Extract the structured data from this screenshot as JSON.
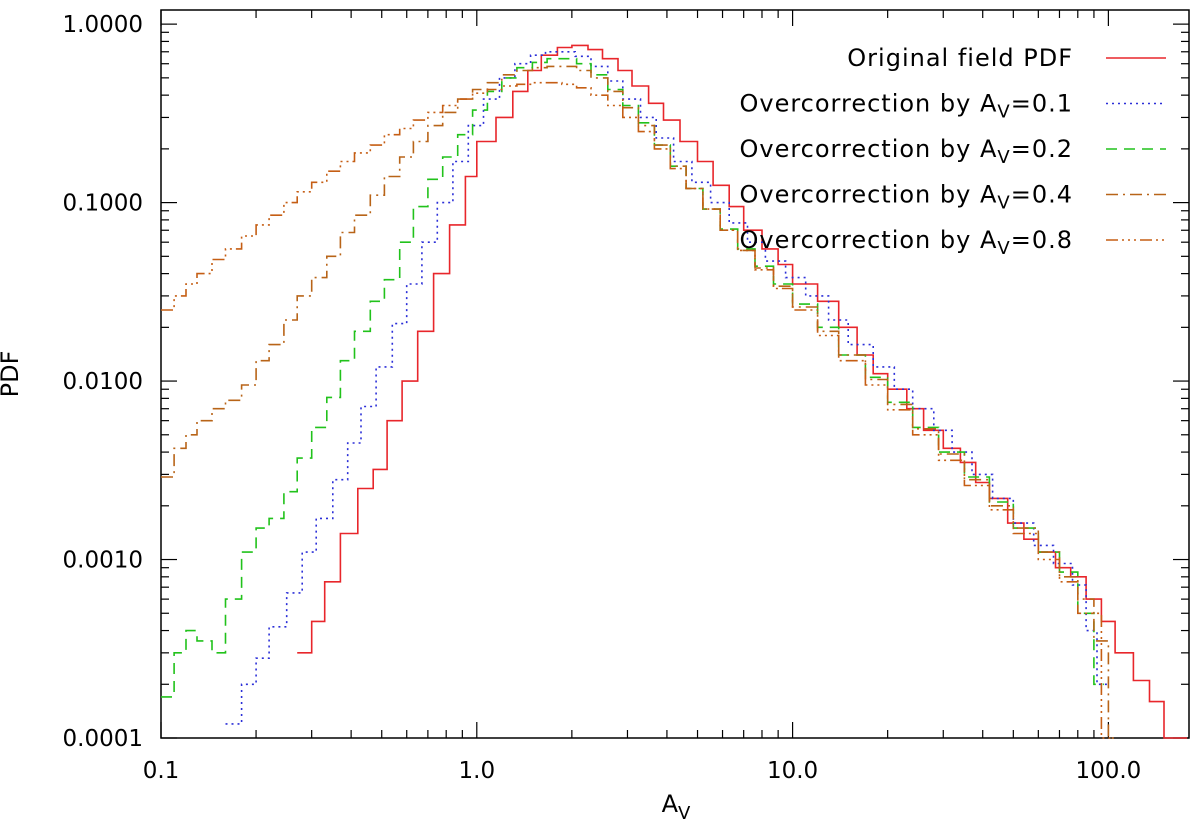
{
  "chart_data": {
    "type": "line",
    "title": "",
    "xlabel": "A",
    "xlabel_subscript": "V",
    "ylabel": "PDF",
    "xscale": "log",
    "yscale": "log",
    "xlim": [
      0.1,
      180
    ],
    "ylim": [
      0.0001,
      1.2
    ],
    "grid": false,
    "legend_position": "top-right",
    "x_tick_labels": [
      {
        "value": 0.1,
        "label": "0.1"
      },
      {
        "value": 1,
        "label": "1.0"
      },
      {
        "value": 10,
        "label": "10.0"
      },
      {
        "value": 100,
        "label": "100.0"
      }
    ],
    "y_tick_labels": [
      {
        "value": 0.0001,
        "label": "0.0001"
      },
      {
        "value": 0.001,
        "label": "0.0010"
      },
      {
        "value": 0.01,
        "label": "0.0100"
      },
      {
        "value": 0.1,
        "label": "0.1000"
      },
      {
        "value": 1,
        "label": "1.0000"
      }
    ],
    "series": [
      {
        "name": "Original field PDF",
        "legend_prefix": "Original field PDF",
        "legend_sub": "",
        "legend_suffix": "",
        "color": "#e8262b",
        "dash": "",
        "x": [
          0.27,
          0.3,
          0.33,
          0.37,
          0.42,
          0.47,
          0.52,
          0.58,
          0.65,
          0.73,
          0.82,
          0.92,
          1.0,
          1.15,
          1.3,
          1.45,
          1.6,
          1.8,
          2.0,
          2.25,
          2.5,
          2.8,
          3.1,
          3.5,
          3.9,
          4.4,
          5.0,
          5.6,
          6.3,
          7.0,
          8.0,
          9.0,
          10,
          12,
          14,
          16,
          18,
          20,
          23,
          26,
          30,
          34,
          38,
          42,
          48,
          54,
          60,
          68,
          76,
          85,
          95,
          105,
          120,
          135,
          150,
          165
        ],
        "values": [
          0.0003,
          0.00045,
          0.00075,
          0.0014,
          0.0025,
          0.0032,
          0.006,
          0.01,
          0.019,
          0.04,
          0.075,
          0.14,
          0.22,
          0.3,
          0.42,
          0.55,
          0.67,
          0.74,
          0.76,
          0.72,
          0.64,
          0.55,
          0.45,
          0.36,
          0.29,
          0.22,
          0.17,
          0.125,
          0.095,
          0.07,
          0.055,
          0.045,
          0.035,
          0.028,
          0.02,
          0.014,
          0.011,
          0.009,
          0.007,
          0.0053,
          0.0042,
          0.0035,
          0.0027,
          0.0022,
          0.0016,
          0.0013,
          0.0011,
          0.0009,
          0.0008,
          0.0006,
          0.00045,
          0.0003,
          0.00021,
          0.00016,
          0.0001,
          0.0001
        ]
      },
      {
        "name": "Overcorrection by Av=0.1",
        "legend_prefix": "Overcorrection by A",
        "legend_sub": "V",
        "legend_suffix": "=0.1",
        "color": "#2b2fd8",
        "dash": "2,4",
        "x": [
          0.16,
          0.18,
          0.2,
          0.22,
          0.25,
          0.28,
          0.31,
          0.35,
          0.39,
          0.43,
          0.48,
          0.54,
          0.6,
          0.67,
          0.75,
          0.84,
          0.94,
          1.05,
          1.18,
          1.32,
          1.48,
          1.65,
          1.85,
          2.05,
          2.3,
          2.6,
          2.9,
          3.3,
          3.7,
          4.2,
          4.8,
          5.5,
          6.3,
          7.2,
          8.2,
          9.5,
          11,
          13,
          15,
          18,
          21,
          24,
          28,
          32,
          37,
          43,
          50,
          58,
          67,
          77,
          85,
          92
        ],
        "values": [
          0.00012,
          0.0002,
          0.00028,
          0.00042,
          0.00065,
          0.0011,
          0.0017,
          0.0028,
          0.0045,
          0.0072,
          0.012,
          0.021,
          0.035,
          0.06,
          0.1,
          0.17,
          0.27,
          0.38,
          0.5,
          0.6,
          0.67,
          0.7,
          0.7,
          0.66,
          0.58,
          0.48,
          0.38,
          0.3,
          0.23,
          0.17,
          0.13,
          0.1,
          0.077,
          0.06,
          0.047,
          0.038,
          0.03,
          0.022,
          0.016,
          0.012,
          0.009,
          0.007,
          0.0053,
          0.004,
          0.003,
          0.0022,
          0.0016,
          0.0012,
          0.00095,
          0.00072,
          0.0004,
          0.0002
        ]
      },
      {
        "name": "Overcorrection by Av=0.2",
        "legend_prefix": "Overcorrection by A",
        "legend_sub": "V",
        "legend_suffix": "=0.2",
        "color": "#21c21b",
        "dash": "11,7",
        "x": [
          0.1,
          0.11,
          0.12,
          0.13,
          0.145,
          0.16,
          0.18,
          0.2,
          0.22,
          0.245,
          0.27,
          0.3,
          0.335,
          0.37,
          0.41,
          0.46,
          0.51,
          0.57,
          0.63,
          0.7,
          0.78,
          0.87,
          0.97,
          1.08,
          1.2,
          1.34,
          1.5,
          1.67,
          1.86,
          2.07,
          2.3,
          2.6,
          2.9,
          3.25,
          3.65,
          4.1,
          4.6,
          5.2,
          5.9,
          6.7,
          7.6,
          8.7,
          10,
          12,
          14,
          17,
          20,
          24,
          29,
          35,
          42,
          50,
          60,
          70,
          80,
          90
        ],
        "values": [
          0.00017,
          0.0003,
          0.0004,
          0.00035,
          0.0003,
          0.0006,
          0.0011,
          0.0015,
          0.0017,
          0.0024,
          0.0037,
          0.0055,
          0.0081,
          0.013,
          0.019,
          0.028,
          0.037,
          0.06,
          0.095,
          0.135,
          0.18,
          0.24,
          0.33,
          0.42,
          0.5,
          0.57,
          0.61,
          0.64,
          0.64,
          0.6,
          0.52,
          0.43,
          0.35,
          0.28,
          0.21,
          0.16,
          0.12,
          0.092,
          0.071,
          0.055,
          0.044,
          0.035,
          0.027,
          0.02,
          0.014,
          0.0105,
          0.0076,
          0.0055,
          0.004,
          0.0029,
          0.0021,
          0.0015,
          0.0011,
          0.00085,
          0.0005,
          0.0002
        ]
      },
      {
        "name": "Overcorrection by Av=0.4",
        "legend_prefix": "Overcorrection by A",
        "legend_sub": "V",
        "legend_suffix": "=0.4",
        "color": "#b86418",
        "dash": "12,5,2,5",
        "x": [
          0.1,
          0.11,
          0.12,
          0.13,
          0.145,
          0.16,
          0.18,
          0.2,
          0.22,
          0.245,
          0.27,
          0.3,
          0.335,
          0.37,
          0.41,
          0.46,
          0.51,
          0.57,
          0.63,
          0.7,
          0.78,
          0.87,
          0.97,
          1.08,
          1.2,
          1.34,
          1.5,
          1.67,
          1.86,
          2.07,
          2.3,
          2.6,
          2.9,
          3.25,
          3.65,
          4.1,
          4.6,
          5.2,
          5.9,
          6.7,
          7.6,
          8.7,
          10,
          12,
          14,
          17,
          20,
          24,
          29,
          35,
          42,
          50,
          60,
          70,
          80,
          90,
          100
        ],
        "values": [
          0.0029,
          0.0042,
          0.005,
          0.006,
          0.007,
          0.0078,
          0.0095,
          0.013,
          0.016,
          0.022,
          0.03,
          0.038,
          0.05,
          0.068,
          0.085,
          0.11,
          0.14,
          0.18,
          0.22,
          0.27,
          0.32,
          0.38,
          0.43,
          0.47,
          0.52,
          0.55,
          0.57,
          0.58,
          0.58,
          0.55,
          0.5,
          0.42,
          0.34,
          0.27,
          0.21,
          0.16,
          0.12,
          0.092,
          0.07,
          0.054,
          0.043,
          0.034,
          0.026,
          0.019,
          0.014,
          0.0102,
          0.0074,
          0.0054,
          0.0039,
          0.0028,
          0.002,
          0.0015,
          0.0011,
          0.0008,
          0.0006,
          0.00035,
          0.0001
        ]
      },
      {
        "name": "Overcorrection by Av=0.8",
        "legend_prefix": "Overcorrection by A",
        "legend_sub": "V",
        "legend_suffix": "=0.8",
        "color": "#c55e14",
        "dash": "12,4,2,4,2,4,2,4",
        "x": [
          0.1,
          0.11,
          0.12,
          0.13,
          0.145,
          0.16,
          0.18,
          0.2,
          0.22,
          0.245,
          0.27,
          0.3,
          0.335,
          0.37,
          0.41,
          0.46,
          0.51,
          0.57,
          0.63,
          0.7,
          0.78,
          0.87,
          0.97,
          1.08,
          1.2,
          1.34,
          1.5,
          1.67,
          1.86,
          2.07,
          2.3,
          2.6,
          2.9,
          3.25,
          3.65,
          4.1,
          4.6,
          5.2,
          5.9,
          6.7,
          7.6,
          8.7,
          10,
          12,
          14,
          17,
          20,
          24,
          29,
          35,
          42,
          50,
          60,
          70,
          80,
          95
        ],
        "values": [
          0.025,
          0.03,
          0.035,
          0.04,
          0.048,
          0.055,
          0.065,
          0.075,
          0.085,
          0.1,
          0.115,
          0.13,
          0.15,
          0.17,
          0.19,
          0.21,
          0.24,
          0.26,
          0.29,
          0.32,
          0.35,
          0.38,
          0.41,
          0.43,
          0.45,
          0.46,
          0.47,
          0.47,
          0.46,
          0.44,
          0.4,
          0.35,
          0.3,
          0.25,
          0.2,
          0.155,
          0.12,
          0.092,
          0.07,
          0.054,
          0.042,
          0.033,
          0.025,
          0.018,
          0.013,
          0.0095,
          0.0069,
          0.005,
          0.0036,
          0.0026,
          0.0019,
          0.0014,
          0.001,
          0.00075,
          0.0005,
          0.0001
        ]
      }
    ]
  }
}
